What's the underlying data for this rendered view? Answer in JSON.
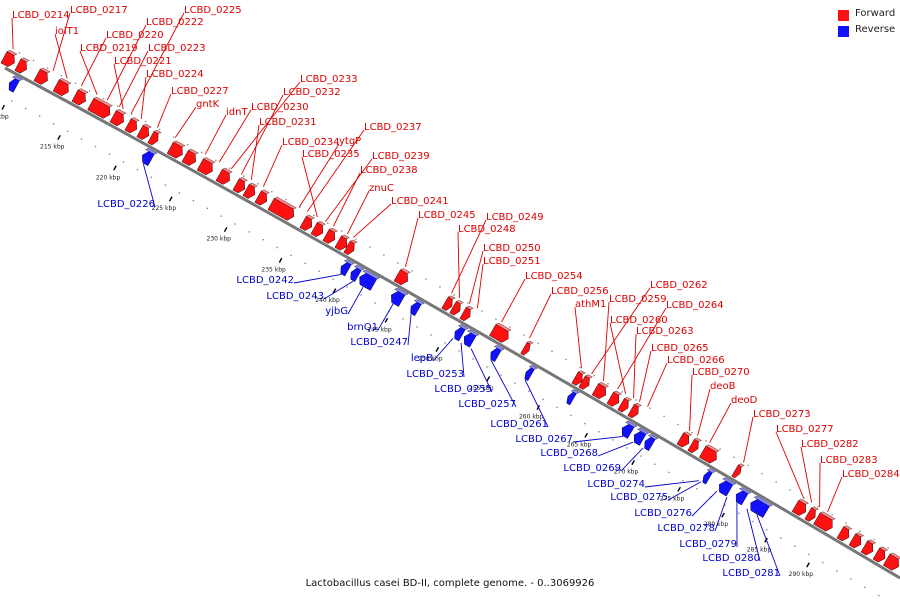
{
  "legend": {
    "forward": {
      "label": "Forward",
      "color": "#ff1111"
    },
    "reverse": {
      "label": "Reverse",
      "color": "#1111ff"
    }
  },
  "caption": "Lactobacillus casei BD-II, complete genome. - 0..3069926",
  "ticks": [
    "210 kbp",
    "215 kbp",
    "220 kbp",
    "225 kbp",
    "230 kbp",
    "235 kbp",
    "240 kbp",
    "245 kbp",
    "250 kbp",
    "255 kbp",
    "260 kbp",
    "265 kbp",
    "270 kbp",
    "275 kbp",
    "280 kbp",
    "285 kbp",
    "290 kbp"
  ],
  "forward_genes": [
    "LCBD_0214",
    "LCBD_0217",
    "iolT1",
    "LCBD_0220",
    "LCBD_0219",
    "LCBD_0222",
    "LCBD_0225",
    "LCBD_0223",
    "LCBD_0221",
    "LCBD_0224",
    "LCBD_0227",
    "gntK",
    "idnT",
    "LCBD_0230",
    "LCBD_0233",
    "LCBD_0232",
    "LCBD_0231",
    "LCBD_0234",
    "ytgP",
    "LCBD_0237",
    "LCBD_0235",
    "LCBD_0239",
    "LCBD_0238",
    "znuC",
    "LCBD_0241",
    "LCBD_0245",
    "LCBD_0249",
    "LCBD_0248",
    "LCBD_0250",
    "LCBD_0251",
    "LCBD_0254",
    "LCBD_0256",
    "athM1",
    "LCBD_0262",
    "LCBD_0259",
    "LCBD_0264",
    "LCBD_0260",
    "LCBD_0263",
    "LCBD_0265",
    "LCBD_0266",
    "LCBD_0270",
    "deoB",
    "deoD",
    "LCBD_0273",
    "LCBD_0277",
    "LCBD_0282",
    "LCBD_0283",
    "LCBD_0284"
  ],
  "reverse_genes": [
    "LCBD_0226",
    "LCBD_0242",
    "LCBD_0243",
    "yjbG",
    "brnQ1",
    "LCBD_0247",
    "lepB",
    "LCBD_0253",
    "LCBD_0255",
    "LCBD_0257",
    "LCBD_0261",
    "LCBD_0267",
    "LCBD_0268",
    "LCBD_0269",
    "LCBD_0274",
    "LCBD_0275",
    "LCBD_0276",
    "LCBD_0278",
    "LCBD_0279",
    "LCBD_0280",
    "LCBD_0281"
  ]
}
